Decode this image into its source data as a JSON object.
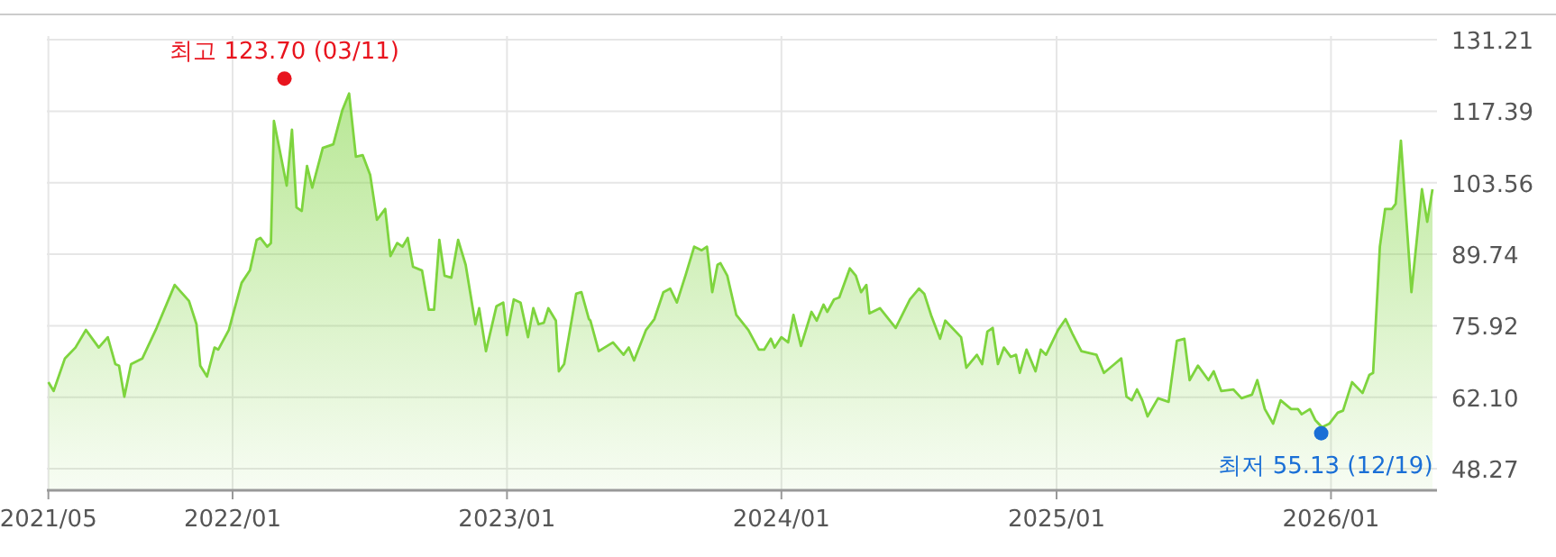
{
  "chart_data": {
    "type": "area",
    "x": [
      "2021-05-01",
      "2021-05-08",
      "2021-05-23",
      "2021-06-06",
      "2021-06-20",
      "2021-07-07",
      "2021-07-19",
      "2021-07-29",
      "2021-08-03",
      "2021-08-10",
      "2021-08-19",
      "2021-09-03",
      "2021-09-22",
      "2021-10-16",
      "2021-11-04",
      "2021-11-14",
      "2021-11-19",
      "2021-11-28",
      "2021-12-08",
      "2021-12-13",
      "2021-12-27",
      "2022-01-13",
      "2022-01-24",
      "2022-02-02",
      "2022-02-07",
      "2022-02-16",
      "2022-02-21",
      "2022-02-25",
      "2022-03-14",
      "2022-03-21",
      "2022-03-27",
      "2022-04-03",
      "2022-04-10",
      "2022-04-17",
      "2022-05-01",
      "2022-05-15",
      "2022-05-27",
      "2022-06-05",
      "2022-06-14",
      "2022-06-23",
      "2022-07-03",
      "2022-07-12",
      "2022-07-23",
      "2022-07-30",
      "2022-08-08",
      "2022-08-15",
      "2022-08-22",
      "2022-08-29",
      "2022-09-10",
      "2022-09-19",
      "2022-09-26",
      "2022-10-03",
      "2022-10-10",
      "2022-10-19",
      "2022-10-28",
      "2022-11-07",
      "2022-11-20",
      "2022-11-25",
      "2022-12-04",
      "2022-12-18",
      "2022-12-27",
      "2023-01-01",
      "2023-01-10",
      "2023-01-19",
      "2023-01-29",
      "2023-02-05",
      "2023-02-12",
      "2023-02-19",
      "2023-02-25",
      "2023-03-07",
      "2023-03-11",
      "2023-03-18",
      "2023-04-03",
      "2023-04-10",
      "2023-04-20",
      "2023-04-22",
      "2023-05-03",
      "2023-05-22",
      "2023-06-05",
      "2023-06-12",
      "2023-06-19",
      "2023-07-05",
      "2023-07-16",
      "2023-07-28",
      "2023-08-06",
      "2023-08-15",
      "2023-08-27",
      "2023-09-07",
      "2023-09-17",
      "2023-09-24",
      "2023-10-01",
      "2023-10-08",
      "2023-10-12",
      "2023-10-21",
      "2023-11-02",
      "2023-11-18",
      "2023-12-02",
      "2023-12-09",
      "2023-12-18",
      "2023-12-23",
      "2024-01-01",
      "2024-01-10",
      "2024-01-17",
      "2024-01-27",
      "2024-02-10",
      "2024-02-17",
      "2024-02-26",
      "2024-03-02",
      "2024-03-11",
      "2024-03-18",
      "2024-04-01",
      "2024-04-09",
      "2024-04-16",
      "2024-04-23",
      "2024-04-27",
      "2024-05-11",
      "2024-06-01",
      "2024-06-20",
      "2024-07-02",
      "2024-07-09",
      "2024-07-18",
      "2024-07-30",
      "2024-08-06",
      "2024-08-27",
      "2024-09-03",
      "2024-09-17",
      "2024-09-24",
      "2024-10-01",
      "2024-10-08",
      "2024-10-15",
      "2024-10-23",
      "2024-11-01",
      "2024-11-08",
      "2024-11-13",
      "2024-11-22",
      "2024-12-04",
      "2024-12-11",
      "2024-12-18",
      "2025-01-03",
      "2025-01-13",
      "2025-01-22",
      "2025-02-03",
      "2025-02-23",
      "2025-03-05",
      "2025-03-19",
      "2025-03-28",
      "2025-04-04",
      "2025-04-11",
      "2025-04-18",
      "2025-04-25",
      "2025-05-02",
      "2025-05-16",
      "2025-05-30",
      "2025-06-10",
      "2025-06-20",
      "2025-06-27",
      "2025-07-08",
      "2025-07-22",
      "2025-07-29",
      "2025-08-08",
      "2025-08-24",
      "2025-09-04",
      "2025-09-18",
      "2025-09-25",
      "2025-10-05",
      "2025-10-16",
      "2025-10-26",
      "2025-11-09",
      "2025-11-18",
      "2025-11-23",
      "2025-12-04",
      "2025-12-11",
      "2025-12-20",
      "2025-12-30",
      "2026-01-10",
      "2026-01-17",
      "2026-01-29",
      "2026-02-12",
      "2026-02-21",
      "2026-02-26",
      "2026-03-07",
      "2026-03-14",
      "2026-03-23",
      "2026-03-28",
      "2026-04-04",
      "2026-04-18",
      "2026-05-02",
      "2026-05-09",
      "2026-05-16"
    ],
    "series": [
      {
        "color": "#7ed43e",
        "values": [
          65.0,
          63.3,
          69.6,
          71.7,
          75.1,
          71.7,
          73.7,
          68.5,
          68.2,
          62.2,
          68.5,
          69.6,
          75.5,
          83.8,
          80.7,
          76.2,
          68.2,
          66.1,
          71.7,
          71.3,
          75.1,
          84.2,
          86.6,
          92.5,
          92.9,
          91.2,
          91.9,
          115.5,
          103.0,
          113.8,
          98.8,
          98.1,
          106.8,
          102.6,
          110.3,
          111.0,
          117.6,
          120.8,
          108.6,
          108.9,
          105.1,
          96.4,
          98.5,
          89.4,
          91.9,
          91.2,
          92.9,
          87.3,
          86.6,
          79.0,
          79.0,
          92.5,
          85.6,
          85.2,
          92.5,
          87.7,
          76.2,
          79.3,
          71.0,
          79.7,
          80.4,
          74.1,
          81.0,
          80.4,
          73.7,
          79.3,
          76.2,
          76.5,
          79.3,
          76.9,
          67.1,
          68.5,
          82.1,
          82.4,
          77.2,
          76.9,
          71.0,
          72.7,
          70.3,
          71.7,
          69.2,
          75.1,
          77.2,
          82.4,
          83.1,
          80.4,
          85.9,
          91.2,
          90.5,
          91.2,
          82.4,
          87.7,
          88.0,
          85.6,
          78.0,
          75.1,
          71.3,
          71.3,
          73.4,
          71.7,
          73.7,
          72.7,
          78.0,
          72.0,
          78.6,
          76.9,
          80.0,
          78.6,
          81.0,
          81.4,
          87.0,
          85.6,
          82.4,
          83.8,
          78.3,
          79.3,
          75.5,
          81.0,
          83.1,
          82.1,
          78.0,
          73.4,
          76.9,
          73.7,
          67.8,
          70.3,
          68.5,
          74.8,
          75.5,
          68.5,
          71.7,
          69.9,
          70.3,
          66.8,
          71.3,
          67.1,
          71.3,
          70.3,
          75.1,
          77.2,
          74.4,
          71.0,
          70.3,
          66.8,
          68.5,
          69.6,
          62.2,
          61.5,
          63.6,
          61.5,
          58.4,
          61.9,
          61.2,
          73.0,
          73.4,
          65.4,
          68.2,
          65.4,
          67.1,
          63.3,
          63.6,
          61.9,
          62.6,
          65.4,
          59.8,
          57.0,
          61.5,
          59.8,
          59.8,
          58.8,
          59.8,
          57.7,
          56.3,
          57.0,
          59.1,
          59.5,
          65.0,
          62.9,
          66.4,
          66.8,
          91.2,
          98.5,
          98.5,
          99.5,
          111.7,
          82.4,
          102.3,
          96.0,
          102.3
        ]
      }
    ],
    "xlim": [
      "2021-04-29",
      "2026-05-22"
    ],
    "xticks": [
      {
        "value": "2021-05-01",
        "label": "2021/05"
      },
      {
        "value": "2022-01-01",
        "label": "2022/01"
      },
      {
        "value": "2023-01-01",
        "label": "2023/01"
      },
      {
        "value": "2024-01-01",
        "label": "2024/01"
      },
      {
        "value": "2025-01-01",
        "label": "2025/01"
      },
      {
        "value": "2026-01-01",
        "label": "2026/01"
      }
    ],
    "ylim": [
      44.1,
      136.1
    ],
    "yticks": [
      {
        "value": 48.27,
        "label": "48.27"
      },
      {
        "value": 62.1,
        "label": "62.10"
      },
      {
        "value": 75.92,
        "label": "75.92"
      },
      {
        "value": 89.74,
        "label": "89.74"
      },
      {
        "value": 103.56,
        "label": "103.56"
      },
      {
        "value": 117.39,
        "label": "117.39"
      },
      {
        "value": 131.21,
        "label": "131.21"
      }
    ],
    "grid": true,
    "annotations": [
      {
        "text": "최고 123.70 (03/11)",
        "x": "2022-03-11",
        "y": 123.7
      },
      {
        "text": "최저 55.13 (12/19)",
        "x": "2025-12-19",
        "y": 55.13
      }
    ]
  }
}
